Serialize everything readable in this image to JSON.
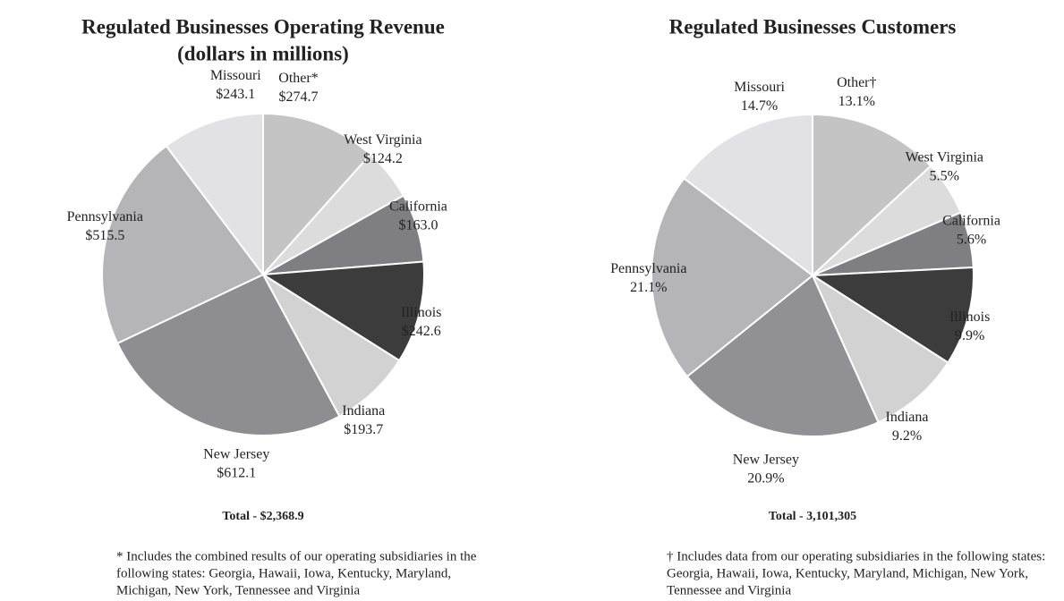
{
  "chart_data": [
    {
      "type": "pie",
      "title": "Regulated Businesses Operating Revenue",
      "subtitle": "(dollars in millions)",
      "categories": [
        "Other*",
        "West Virginia",
        "California",
        "Illinois",
        "Indiana",
        "New Jersey",
        "Pennsylvania",
        "Missouri"
      ],
      "values": [
        274.7,
        124.2,
        163.0,
        242.6,
        193.7,
        612.1,
        515.5,
        243.1
      ],
      "value_labels": [
        "$274.7",
        "$124.2",
        "$163.0",
        "$242.6",
        "$193.7",
        "$612.1",
        "$515.5",
        "$243.1"
      ],
      "colors": [
        "#c4c4c4",
        "#dcdcdc",
        "#7f7f81",
        "#3c3c3c",
        "#d2d2d2",
        "#8e8e90",
        "#b5b5b7",
        "#e2e2e4"
      ],
      "total": "Total - $2,368.9",
      "footnote": [
        "* Includes the combined results of our operating subsidiaries in the",
        "following states: Georgia, Hawaii, Iowa, Kentucky, Maryland,",
        "Michigan, New York, Tennessee and Virginia"
      ]
    },
    {
      "type": "pie",
      "title": "Regulated Businesses Customers",
      "categories": [
        "Other†",
        "West Virginia",
        "California",
        "Illinois",
        "Indiana",
        "New Jersey",
        "Pennsylvania",
        "Missouri"
      ],
      "values": [
        13.1,
        5.5,
        5.6,
        9.9,
        9.2,
        20.9,
        21.1,
        14.7
      ],
      "value_labels": [
        "13.1%",
        "5.5%",
        "5.6%",
        "9.9%",
        "9.2%",
        "20.9%",
        "21.1%",
        "14.7%"
      ],
      "colors": [
        "#c4c4c4",
        "#dcdcdc",
        "#7f7f81",
        "#3c3c3c",
        "#d2d2d2",
        "#919193",
        "#b5b5b7",
        "#e2e2e4"
      ],
      "total": "Total - 3,101,305",
      "footnote": [
        "† Includes data from our operating subsidiaries in the following states:",
        "Georgia, Hawaii, Iowa, Kentucky, Maryland, Michigan, New York,",
        "Tennessee and Virginia"
      ]
    }
  ]
}
